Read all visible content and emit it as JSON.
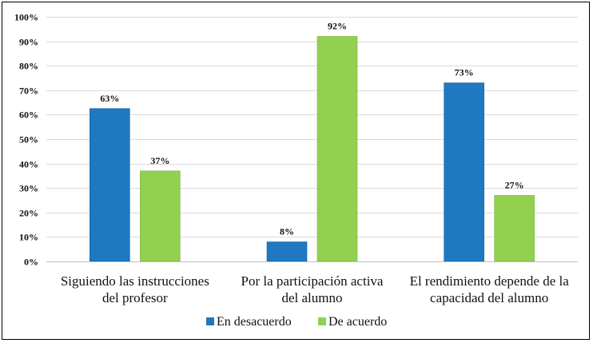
{
  "chart_data": {
    "type": "bar",
    "title": "",
    "xlabel": "",
    "ylabel": "",
    "ylim": [
      0,
      100
    ],
    "y_ticks": [
      "0%",
      "10%",
      "20%",
      "30%",
      "40%",
      "50%",
      "60%",
      "70%",
      "80%",
      "90%",
      "100%"
    ],
    "grid": true,
    "legend_position": "bottom",
    "categories": [
      [
        "Siguiendo las instrucciones",
        "del profesor"
      ],
      [
        "Por la participación activa",
        "del alumno"
      ],
      [
        "El rendimiento depende de la",
        "capacidad del alumno"
      ]
    ],
    "series": [
      {
        "name": "En desacuerdo",
        "color": "#1f78c0",
        "values": [
          62.5,
          8,
          73
        ],
        "labels": [
          "63%",
          "8%",
          "73%"
        ]
      },
      {
        "name": "De acuerdo",
        "color": "#92d050",
        "values": [
          37,
          92,
          27
        ],
        "labels": [
          "37%",
          "92%",
          "27%"
        ]
      }
    ]
  }
}
